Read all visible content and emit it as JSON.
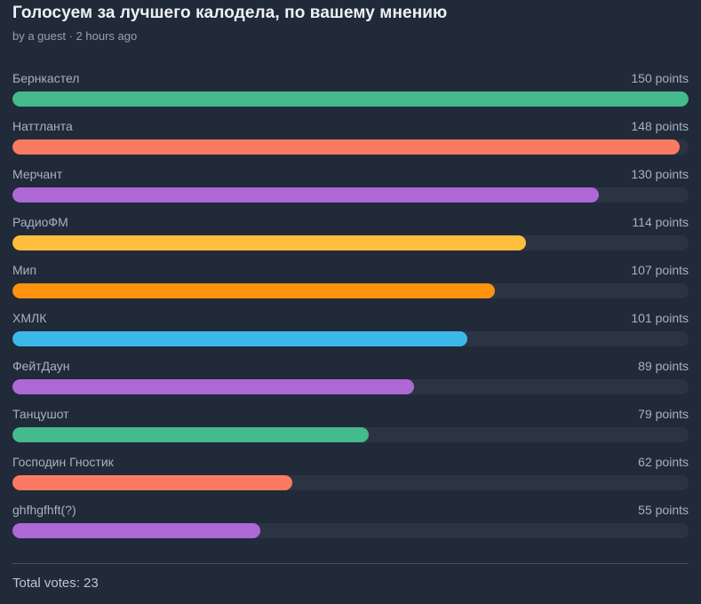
{
  "page": {
    "title": "Голосуем за лучшего калодела, по вашему мнению",
    "byline": "by a guest · 2 hours ago",
    "total_votes": "Total votes: 23"
  },
  "colors": {
    "background": "#212A39",
    "track": "#2C3444",
    "title_text": "#EDF1F6",
    "byline_text": "#95A0B1",
    "label_text": "#A7B1C1",
    "divider": "#47505F",
    "total_text": "#BDC5D1"
  },
  "chart_data": {
    "type": "bar",
    "orientation": "horizontal",
    "title": "Голосуем за лучшего калодела, по вашему мнению",
    "unit": "points",
    "max_value": 150,
    "total_votes": 23,
    "items": [
      {
        "label": "Бернкастел",
        "value": 150,
        "points_label": "150 points",
        "color": "#44BA8D"
      },
      {
        "label": "Наттланта",
        "value": 148,
        "points_label": "148 points",
        "color": "#FA7B61"
      },
      {
        "label": "Мерчант",
        "value": 130,
        "points_label": "130 points",
        "color": "#AE68D6"
      },
      {
        "label": "РадиоФМ",
        "value": 114,
        "points_label": "114 points",
        "color": "#FFBE3D"
      },
      {
        "label": "Мип",
        "value": 107,
        "points_label": "107 points",
        "color": "#FF920E"
      },
      {
        "label": "ХМЛК",
        "value": 101,
        "points_label": "101 points",
        "color": "#3CB9E9"
      },
      {
        "label": "ФейтДаун",
        "value": 89,
        "points_label": "89 points",
        "color": "#AE68D6"
      },
      {
        "label": "Танцушот",
        "value": 79,
        "points_label": "79 points",
        "color": "#44BA8D"
      },
      {
        "label": "Господин Гностик",
        "value": 62,
        "points_label": "62 points",
        "color": "#FA7B61"
      },
      {
        "label": "ghfhgfhft(?)",
        "value": 55,
        "points_label": "55 points",
        "color": "#AE68D6"
      }
    ]
  }
}
